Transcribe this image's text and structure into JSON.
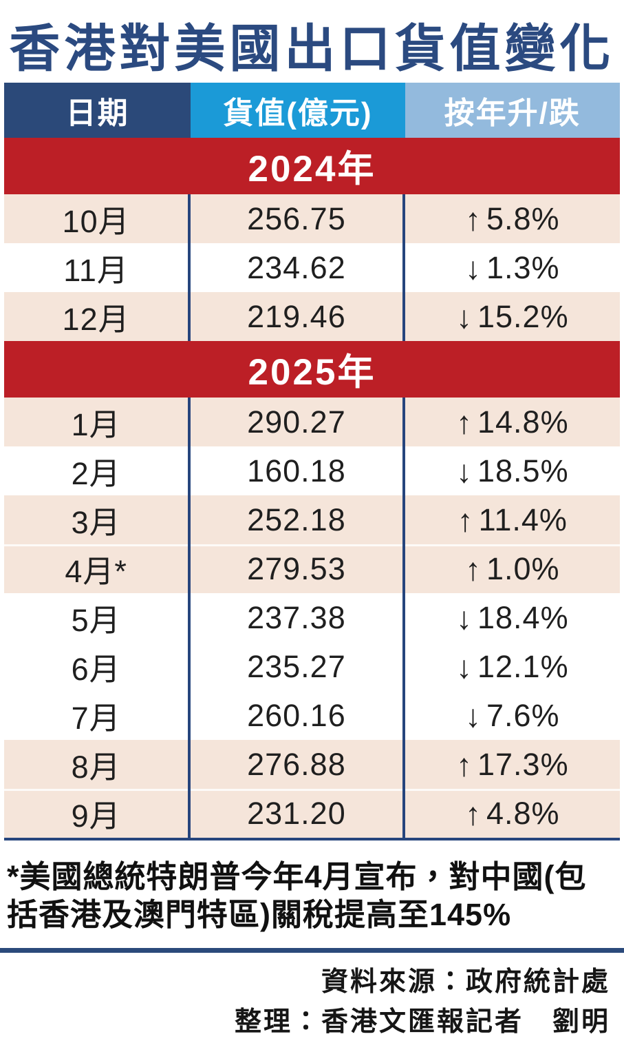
{
  "page": {
    "title": "香港對美國出口貨值變化"
  },
  "table": {
    "headers": {
      "date": "日期",
      "value": "貨值(億元)",
      "yoy": "按年升/跌"
    },
    "sections": [
      {
        "year_label": "2024年",
        "rows": [
          {
            "month": "10月",
            "value": "256.75",
            "arrow": "↑",
            "change": "5.8%",
            "direction": "up"
          },
          {
            "month": "11月",
            "value": "234.62",
            "arrow": "↓",
            "change": "1.3%",
            "direction": "down"
          },
          {
            "month": "12月",
            "value": "219.46",
            "arrow": "↓",
            "change": "15.2%",
            "direction": "down"
          }
        ]
      },
      {
        "year_label": "2025年",
        "rows": [
          {
            "month": "1月",
            "value": "290.27",
            "arrow": "↑",
            "change": "14.8%",
            "direction": "up"
          },
          {
            "month": "2月",
            "value": "160.18",
            "arrow": "↓",
            "change": "18.5%",
            "direction": "down"
          },
          {
            "month": "3月",
            "value": "252.18",
            "arrow": "↑",
            "change": "11.4%",
            "direction": "up"
          },
          {
            "month": "4月*",
            "value": "279.53",
            "arrow": "↑",
            "change": "1.0%",
            "direction": "up"
          },
          {
            "month": "5月",
            "value": "237.38",
            "arrow": "↓",
            "change": "18.4%",
            "direction": "down"
          },
          {
            "month": "6月",
            "value": "235.27",
            "arrow": "↓",
            "change": "12.1%",
            "direction": "down"
          },
          {
            "month": "7月",
            "value": "260.16",
            "arrow": "↓",
            "change": "7.6%",
            "direction": "down"
          },
          {
            "month": "8月",
            "value": "276.88",
            "arrow": "↑",
            "change": "17.3%",
            "direction": "up"
          },
          {
            "month": "9月",
            "value": "231.20",
            "arrow": "↑",
            "change": "4.8%",
            "direction": "up"
          }
        ]
      }
    ]
  },
  "footnote": "*美國總統特朗普今年4月宣布，對中國(包括香港及澳門特區)關稅提高至145%",
  "credits": {
    "source": "資料來源：政府統計處",
    "compiled": "整理：香港文匯報記者　劉明"
  },
  "colors": {
    "title_navy": "#2b4a80",
    "header_date_bg": "#2b4979",
    "header_value_bg": "#1b9ad7",
    "header_yoy_bg": "#93badd",
    "year_band_bg": "#bc1f26",
    "row_shaded_bg": "#f5e5da",
    "divider_navy": "#26457d",
    "text_dark": "#1f1f1f"
  },
  "chart_data": {
    "type": "table",
    "title": "香港對美國出口貨值變化",
    "columns": [
      "日期",
      "貨值(億元)",
      "按年升/跌"
    ],
    "unit": "億元",
    "rows": [
      [
        "2024年10月",
        256.75,
        "+5.8%"
      ],
      [
        "2024年11月",
        234.62,
        "-1.3%"
      ],
      [
        "2024年12月",
        219.46,
        "-15.2%"
      ],
      [
        "2025年1月",
        290.27,
        "+14.8%"
      ],
      [
        "2025年2月",
        160.18,
        "-18.5%"
      ],
      [
        "2025年3月",
        252.18,
        "+11.4%"
      ],
      [
        "2025年4月",
        279.53,
        "+1.0%"
      ],
      [
        "2025年5月",
        237.38,
        "-18.4%"
      ],
      [
        "2025年6月",
        235.27,
        "-12.1%"
      ],
      [
        "2025年7月",
        260.16,
        "-7.6%"
      ],
      [
        "2025年8月",
        276.88,
        "+17.3%"
      ],
      [
        "2025年9月",
        231.2,
        "+4.8%"
      ]
    ],
    "footnote": "*美國總統特朗普今年4月宣布，對中國(包括香港及澳門特區)關稅提高至145%",
    "source": "政府統計處"
  }
}
